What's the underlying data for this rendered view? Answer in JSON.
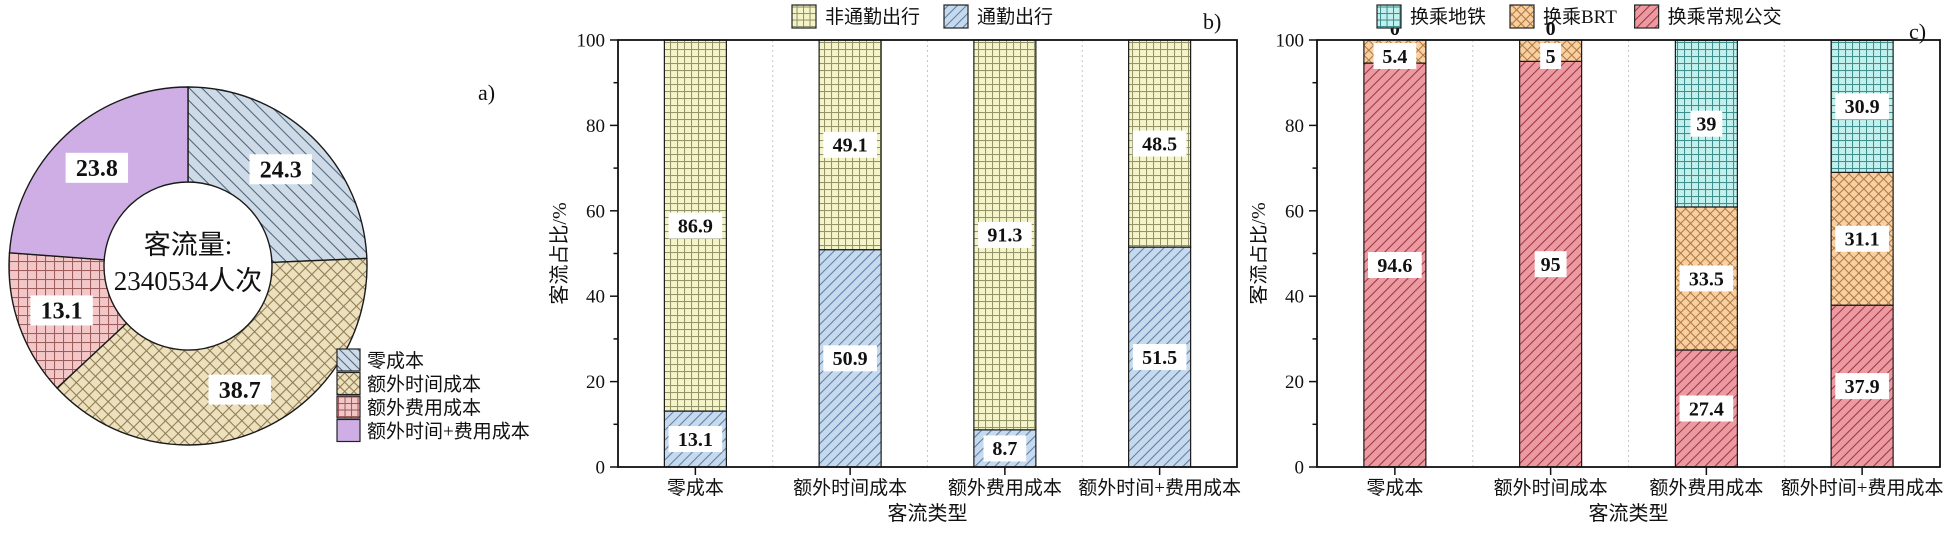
{
  "panel_labels": {
    "a": "a)",
    "b": "b)",
    "c": "c)"
  },
  "chart_data": [
    {
      "id": "passenger-volume-donut",
      "type": "pie",
      "subtype": "donut",
      "direction": "clockwise",
      "start_angle": "top",
      "center_text": [
        "客流量:",
        "2340534人次"
      ],
      "legend_position": "lower-right",
      "slices": [
        {
          "label": "零成本",
          "value": 24.3,
          "fill": "#cedbe6",
          "hatch": "backslash",
          "hatch_color": "#49657f"
        },
        {
          "label": "额外时间成本",
          "value": 38.7,
          "fill": "#ece0bd",
          "hatch": "cross-diagonal",
          "hatch_color": "#8d7b53"
        },
        {
          "label": "额外费用成本",
          "value": 13.1,
          "fill": "#f3c7c7",
          "hatch": "grid",
          "hatch_color": "#9f5c5c"
        },
        {
          "label": "额外时间+费用成本",
          "value": 23.8,
          "fill": "#cfaee6",
          "hatch": "none",
          "hatch_color": ""
        }
      ]
    },
    {
      "id": "trip-purpose-stacked-bar",
      "type": "bar",
      "stacked": true,
      "xlabel": "客流类型",
      "ylabel": "客流占比/%",
      "ylim": [
        0,
        100
      ],
      "yticks": [
        0,
        20,
        40,
        60,
        80,
        100
      ],
      "grid": "dotted-vertical-separators",
      "legend_position": "top",
      "categories": [
        "零成本",
        "额外时间成本",
        "额外费用成本",
        "额外时间+费用成本"
      ],
      "series": [
        {
          "name": "通勤出行",
          "values": [
            13.1,
            50.9,
            8.7,
            51.5
          ],
          "fill": "#c6d9ed",
          "hatch": "diagonal",
          "hatch_color": "#5b7fa8"
        },
        {
          "name": "非通勤出行",
          "values": [
            86.9,
            49.1,
            91.3,
            48.5
          ],
          "fill": "#f4f4c8",
          "hatch": "grid",
          "hatch_color": "#94946a"
        }
      ],
      "legend_order": [
        "非通勤出行",
        "通勤出行"
      ]
    },
    {
      "id": "transfer-mode-stacked-bar",
      "type": "bar",
      "stacked": true,
      "xlabel": "客流类型",
      "ylabel": "客流占比/%",
      "ylim": [
        0,
        100
      ],
      "yticks": [
        0,
        20,
        40,
        60,
        80,
        100
      ],
      "grid": "dotted-vertical-separators",
      "legend_position": "top",
      "categories": [
        "零成本",
        "额外时间成本",
        "额外费用成本",
        "额外时间+费用成本"
      ],
      "series": [
        {
          "name": "换乘常规公交",
          "values": [
            94.6,
            95,
            27.4,
            37.9
          ],
          "fill": "#ec9aa2",
          "hatch": "diagonal",
          "hatch_color": "#a03540"
        },
        {
          "name": "换乘BRT",
          "values": [
            5.4,
            5,
            33.5,
            31.1
          ],
          "fill": "#f8d0a2",
          "hatch": "cross-diagonal",
          "hatch_color": "#b07840"
        },
        {
          "name": "换乘地铁",
          "values": [
            0,
            0,
            39,
            30.9
          ],
          "fill": "#c2f0ed",
          "hatch": "grid",
          "hatch_color": "#3f8f8f"
        }
      ],
      "legend_order": [
        "换乘地铁",
        "换乘BRT",
        "换乘常规公交"
      ]
    }
  ]
}
